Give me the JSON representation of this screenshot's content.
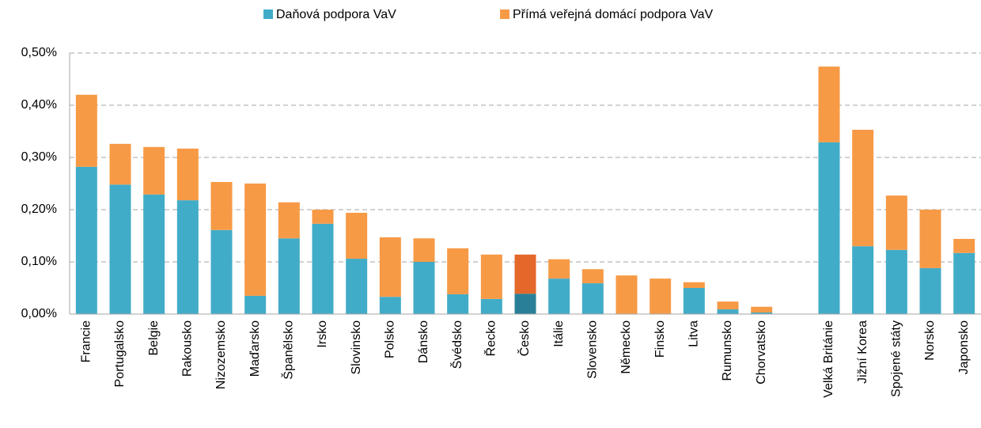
{
  "chart_data": {
    "type": "stacked_bar",
    "categories": [
      "Francie",
      "Portugalsko",
      "Belgie",
      "Rakousko",
      "Nizozemsko",
      "Maďarsko",
      "Španělsko",
      "Irsko",
      "Slovinsko",
      "Polsko",
      "Dánsko",
      "Švédsko",
      "Řecko",
      "Česko",
      "Itálie",
      "Slovensko",
      "Německo",
      "Finsko",
      "Litva",
      "Rumunsko",
      "Chorvatsko",
      null,
      "Velká Británie",
      "Jižní Korea",
      "Spojené státy",
      "Norsko",
      "Japonsko"
    ],
    "series": [
      {
        "name": "Daňová podpora VaV",
        "color": "#41acc8",
        "highlight_color": "#2a7f98",
        "values": [
          0.282,
          0.248,
          0.229,
          0.218,
          0.161,
          0.035,
          0.145,
          0.173,
          0.106,
          0.033,
          0.1,
          0.038,
          0.029,
          0.039,
          0.068,
          0.059,
          0,
          0,
          0.05,
          0.009,
          0.003,
          null,
          0.329,
          0.13,
          0.123,
          0.088,
          0.117
        ]
      },
      {
        "name": "Přímá veřejná domácí podpora VaV",
        "color": "#f79a46",
        "highlight_color": "#e4682a",
        "values": [
          0.138,
          0.078,
          0.091,
          0.099,
          0.092,
          0.215,
          0.069,
          0.027,
          0.088,
          0.114,
          0.045,
          0.088,
          0.085,
          0.075,
          0.037,
          0.027,
          0.074,
          0.068,
          0.011,
          0.015,
          0.011,
          null,
          0.145,
          0.223,
          0.104,
          0.112,
          0.027
        ]
      }
    ],
    "highlight_index": 13,
    "ylim": [
      0,
      0.5
    ],
    "yticks": [
      {
        "value": 0,
        "label": "0,00%"
      },
      {
        "value": 0.1,
        "label": "0,10%"
      },
      {
        "value": 0.2,
        "label": "0,20%"
      },
      {
        "value": 0.3,
        "label": "0,30%"
      },
      {
        "value": 0.4,
        "label": "0,40%"
      },
      {
        "value": 0.5,
        "label": "0,50%"
      }
    ],
    "grid": true,
    "legend": "top"
  }
}
